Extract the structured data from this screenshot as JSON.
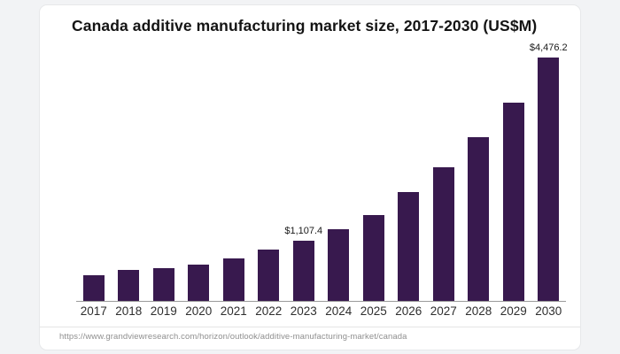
{
  "header": {
    "title": "Canada additive manufacturing market size, 2017-2030 (US$M)"
  },
  "chart_data": {
    "type": "bar",
    "title": "Canada additive manufacturing market size, 2017-2030 (US$M)",
    "unit": "US$M",
    "categories": [
      "2017",
      "2018",
      "2019",
      "2020",
      "2021",
      "2022",
      "2023",
      "2024",
      "2025",
      "2026",
      "2027",
      "2028",
      "2029",
      "2030"
    ],
    "values": [
      465,
      570,
      595,
      665,
      780,
      940,
      1107.4,
      1315,
      1585,
      2005,
      2455,
      3005,
      3640,
      4476.2
    ],
    "data_labels": [
      "",
      "",
      "",
      "",
      "",
      "",
      "$1,107.4",
      "",
      "",
      "",
      "",
      "",
      "",
      "$4,476.2"
    ],
    "ylim": [
      0,
      4476.2
    ],
    "xlabel": "",
    "ylabel": "",
    "grid": false,
    "legend_position": "none",
    "bar_color": "#38194E",
    "note": "values for unlabeled bars estimated from bar heights"
  },
  "footer": {
    "source_url": "https://www.grandviewresearch.com/horizon/outlook/additive-manufacturing-market/canada"
  },
  "colors": {
    "background": "#f2f3f5",
    "card": "#ffffff",
    "card_border": "#e7e8ea",
    "bar": "#38194E",
    "title_text": "#141414",
    "axis_line": "#9a9a9a",
    "year_label": "#2e2e2e",
    "data_label": "#191919",
    "divider": "#e5e5e5",
    "url_text": "#8f8f8f"
  }
}
